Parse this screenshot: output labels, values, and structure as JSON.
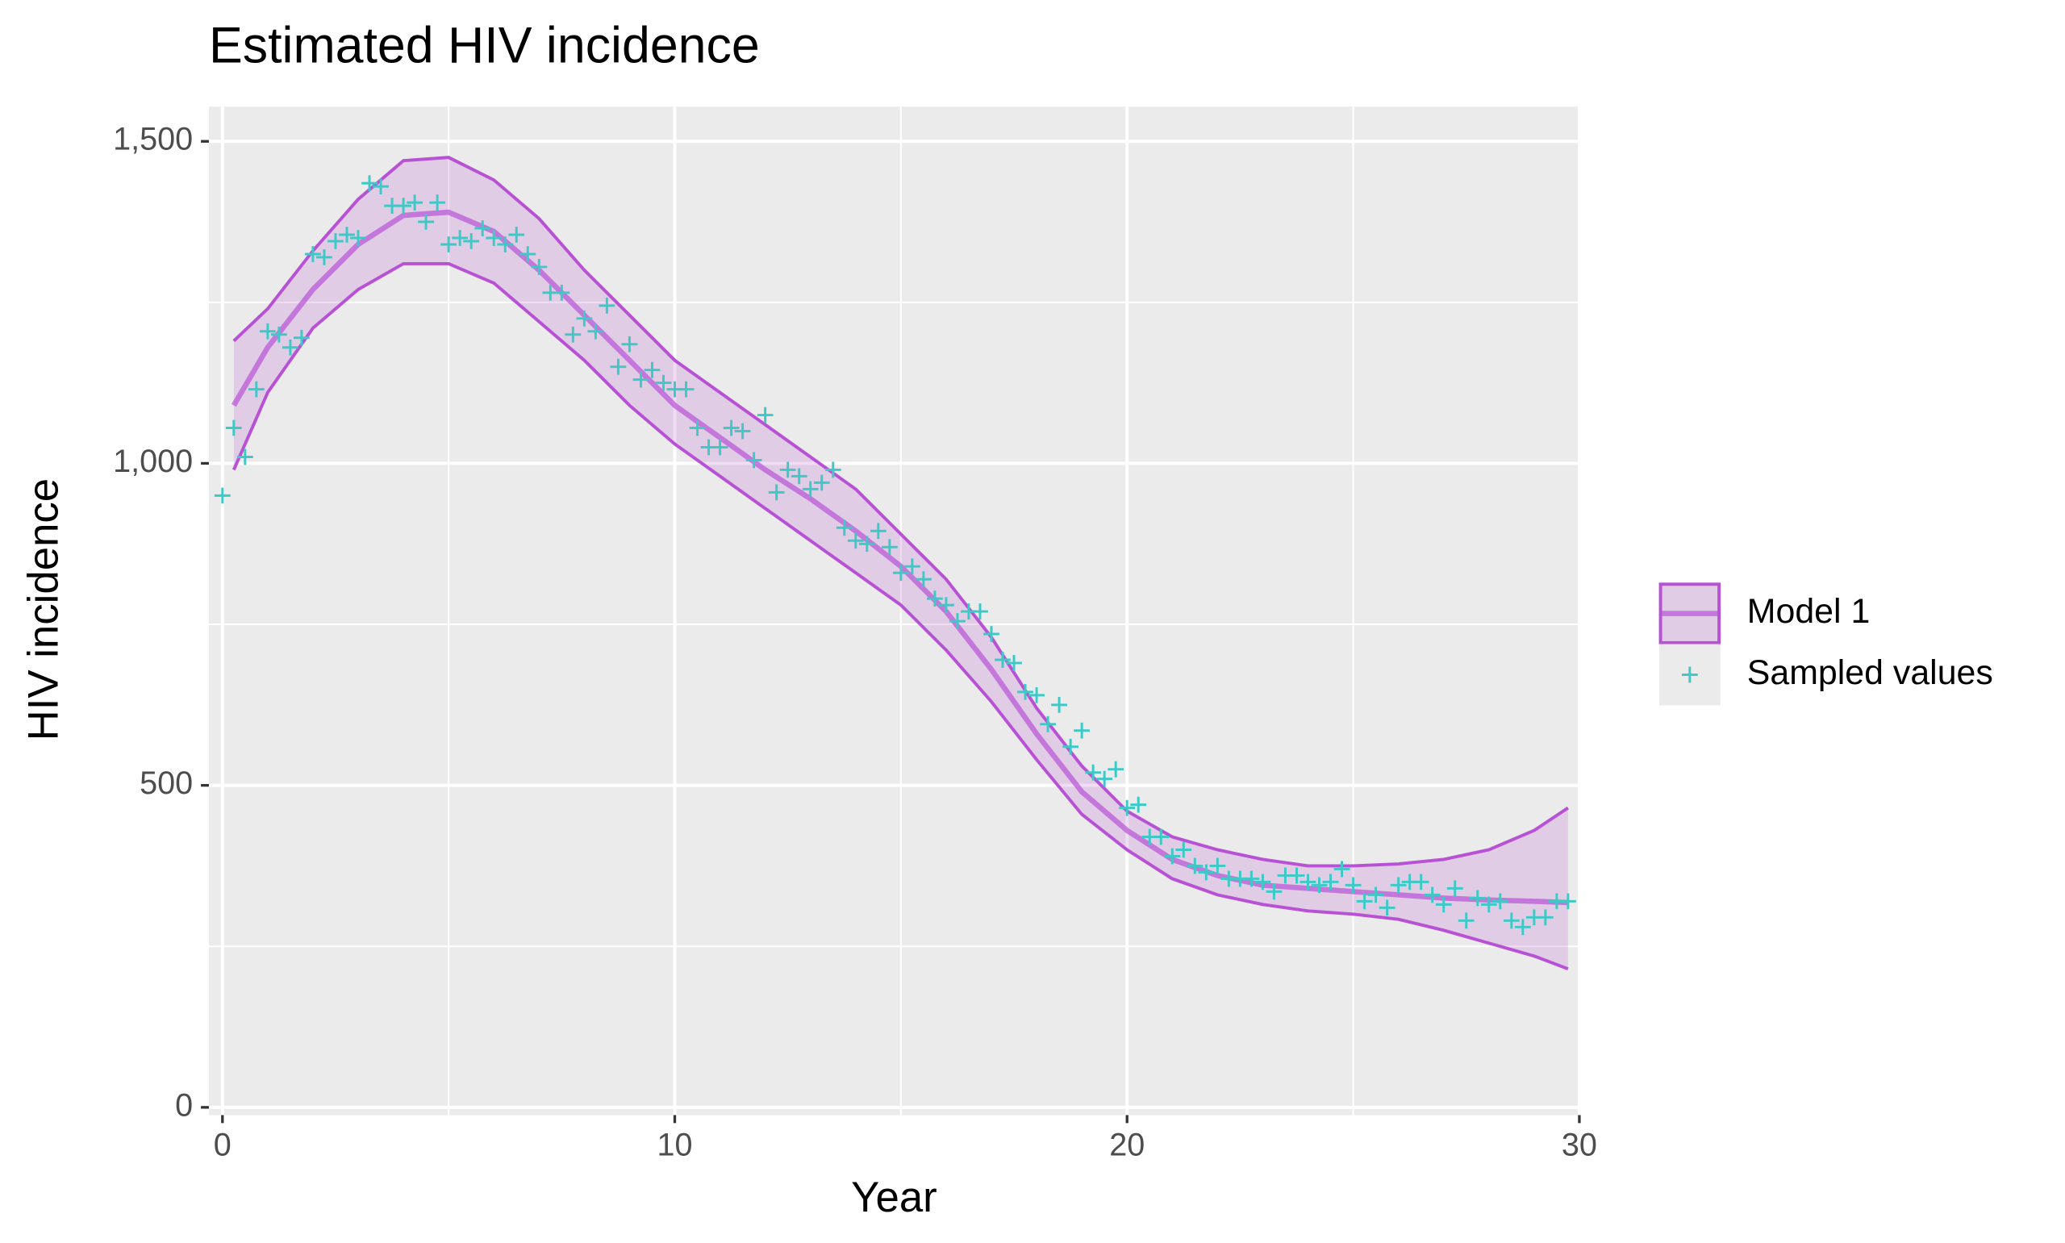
{
  "chart_data": {
    "type": "line",
    "title": "Estimated HIV incidence",
    "x_label": "Year",
    "y_label": "HIV incidence",
    "xlim": [
      -0.3,
      30
    ],
    "ylim": [
      -12,
      1554
    ],
    "xticks": [
      0,
      10,
      20,
      30
    ],
    "yticks": [
      0,
      {
        "value": 500,
        "label": "500"
      },
      {
        "value": 1000,
        "label": "1,000"
      },
      {
        "value": 1500,
        "label": "1,500"
      }
    ],
    "grid": true,
    "legend_position": "right",
    "series": [
      {
        "name": "Model 1",
        "kind": "band",
        "color": "#b752d4",
        "fill": "#b752d4",
        "x": [
          0.25,
          1,
          2,
          3,
          4,
          5,
          6,
          7,
          8,
          9,
          10,
          11,
          12,
          13,
          14,
          15,
          16,
          17,
          18,
          19,
          20,
          21,
          22,
          23,
          24,
          25,
          26,
          27,
          28,
          29,
          29.75
        ],
        "values": [
          1090,
          1180,
          1270,
          1340,
          1385,
          1390,
          1360,
          1300,
          1230,
          1160,
          1090,
          1040,
          990,
          945,
          895,
          840,
          770,
          680,
          580,
          490,
          430,
          385,
          360,
          345,
          340,
          335,
          330,
          325,
          322,
          320,
          318
        ],
        "upper": [
          1190,
          1240,
          1330,
          1410,
          1470,
          1475,
          1440,
          1380,
          1300,
          1230,
          1160,
          1110,
          1060,
          1010,
          960,
          890,
          820,
          730,
          620,
          530,
          460,
          420,
          400,
          385,
          375,
          375,
          378,
          385,
          400,
          430,
          465
        ],
        "lower": [
          990,
          1110,
          1210,
          1270,
          1310,
          1310,
          1280,
          1220,
          1160,
          1090,
          1030,
          980,
          930,
          880,
          830,
          780,
          710,
          630,
          540,
          455,
          400,
          355,
          330,
          315,
          305,
          300,
          292,
          275,
          255,
          235,
          215
        ]
      },
      {
        "name": "Sampled values",
        "kind": "points",
        "color": "#3fc9c6",
        "x": [
          0,
          0.25,
          0.5,
          0.75,
          1,
          1.25,
          1.5,
          1.75,
          2,
          2.25,
          2.5,
          2.75,
          3,
          3.25,
          3.5,
          3.75,
          4,
          4.25,
          4.5,
          4.75,
          5,
          5.25,
          5.5,
          5.75,
          6,
          6.25,
          6.5,
          6.75,
          7,
          7.25,
          7.5,
          7.75,
          8,
          8.25,
          8.5,
          8.75,
          9,
          9.25,
          9.5,
          9.75,
          10,
          10.25,
          10.5,
          10.75,
          11,
          11.25,
          11.5,
          11.75,
          12,
          12.25,
          12.5,
          12.75,
          13,
          13.25,
          13.5,
          13.75,
          14,
          14.25,
          14.5,
          14.75,
          15,
          15.25,
          15.5,
          15.75,
          16,
          16.25,
          16.5,
          16.75,
          17,
          17.25,
          17.5,
          17.75,
          18,
          18.25,
          18.5,
          18.75,
          19,
          19.25,
          19.5,
          19.75,
          20,
          20.25,
          20.5,
          20.75,
          21,
          21.25,
          21.5,
          21.75,
          22,
          22.25,
          22.5,
          22.75,
          23,
          23.25,
          23.5,
          23.75,
          24,
          24.25,
          24.5,
          24.75,
          25,
          25.25,
          25.5,
          25.75,
          26,
          26.25,
          26.5,
          26.75,
          27,
          27.25,
          27.5,
          27.75,
          28,
          28.25,
          28.5,
          28.75,
          29,
          29.25,
          29.5,
          29.75
        ],
        "values": [
          950,
          1055,
          1010,
          1115,
          1205,
          1200,
          1180,
          1195,
          1325,
          1320,
          1345,
          1355,
          1350,
          1435,
          1430,
          1400,
          1400,
          1405,
          1375,
          1405,
          1340,
          1350,
          1345,
          1365,
          1350,
          1340,
          1355,
          1325,
          1305,
          1265,
          1265,
          1200,
          1225,
          1205,
          1245,
          1150,
          1185,
          1130,
          1145,
          1125,
          1115,
          1115,
          1055,
          1025,
          1025,
          1055,
          1050,
          1005,
          1075,
          955,
          990,
          980,
          960,
          970,
          990,
          900,
          880,
          875,
          895,
          870,
          830,
          840,
          820,
          790,
          780,
          755,
          770,
          770,
          735,
          695,
          690,
          645,
          640,
          595,
          625,
          560,
          585,
          520,
          510,
          525,
          465,
          470,
          420,
          420,
          390,
          400,
          375,
          365,
          375,
          355,
          355,
          355,
          350,
          335,
          360,
          360,
          350,
          345,
          350,
          370,
          345,
          320,
          330,
          310,
          345,
          350,
          350,
          330,
          315,
          340,
          290,
          325,
          315,
          320,
          290,
          280,
          295,
          295,
          320,
          320
        ]
      }
    ]
  }
}
